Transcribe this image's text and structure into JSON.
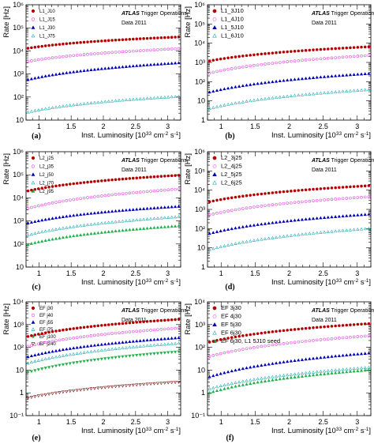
{
  "colors": {
    "red": "#b40000",
    "magenta": "#e040e0",
    "blue": "#0000b4",
    "cyan": "#19a8b0",
    "green": "#22b14c",
    "darkred": "#700000"
  },
  "chart_data": [
    {
      "type": "scatter",
      "panel_label": "(a)",
      "xlabel": "Inst. Luminosity [10",
      "xlabel_exp": "33",
      "xlabel_unit": " cm",
      "xlabel_unit_exp": "-2",
      "xlabel_tail": " s",
      "xlabel_tail_exp": "-1",
      "xlabel_close": "]",
      "ylabel": "Rate [Hz]",
      "experiment": "ATLAS",
      "experiment_suffix": " Trigger Operations",
      "dataset": "Data 2011",
      "xlim": [
        0.8,
        3.2
      ],
      "ylim": [
        10,
        1000000
      ],
      "log_y": true,
      "xticks": [
        "1",
        "1.5",
        "2",
        "2.5",
        "3"
      ],
      "xtick_values": [
        1,
        1.5,
        2,
        2.5,
        3
      ],
      "yticks": [
        "10",
        "10²",
        "10³",
        "10⁴",
        "10⁵",
        "10⁶"
      ],
      "ytick_values": [
        10,
        100,
        1000,
        10000,
        100000,
        1000000
      ],
      "series": [
        {
          "name": "L1_J10",
          "marker": "circle-filled",
          "color": "#b40000",
          "start": 13000,
          "end": 40000
        },
        {
          "name": "L1_J15",
          "marker": "circle-open",
          "color": "#e040e0",
          "start": 3500,
          "end": 12500
        },
        {
          "name": "L1_J30",
          "marker": "triangle-filled",
          "color": "#0000b4",
          "start": 560,
          "end": 3000
        },
        {
          "name": "L1_J75",
          "marker": "triangle-open",
          "color": "#19a8b0",
          "start": 22,
          "end": 105
        }
      ]
    },
    {
      "type": "scatter",
      "panel_label": "(b)",
      "xlabel": "Inst. Luminosity [10",
      "xlabel_exp": "33",
      "xlabel_unit": " cm",
      "xlabel_unit_exp": "-2",
      "xlabel_tail": " s",
      "xlabel_tail_exp": "-1",
      "xlabel_close": "]",
      "ylabel": "Rate [Hz]",
      "experiment": "ATLAS",
      "experiment_suffix": " Trigger Operations",
      "dataset": "Data 2011",
      "xlim": [
        0.8,
        3.2
      ],
      "ylim": [
        1,
        1000000
      ],
      "log_y": true,
      "xticks": [
        "1",
        "1.5",
        "2",
        "2.5",
        "3"
      ],
      "xtick_values": [
        1,
        1.5,
        2,
        2.5,
        3
      ],
      "yticks": [
        "1",
        "10",
        "10²",
        "10³",
        "10⁴",
        "10⁵",
        "10⁶"
      ],
      "ytick_values": [
        1,
        10,
        100,
        1000,
        10000,
        100000,
        1000000
      ],
      "series": [
        {
          "name": "L1_3J10",
          "marker": "circle-filled",
          "color": "#b40000",
          "start": 1200,
          "end": 6500
        },
        {
          "name": "L1_4J10",
          "marker": "circle-open",
          "color": "#e040e0",
          "start": 280,
          "end": 2300
        },
        {
          "name": "L1_5J10",
          "marker": "triangle-filled",
          "color": "#0000b4",
          "start": 28,
          "end": 260
        },
        {
          "name": "L1_6J10",
          "marker": "triangle-open",
          "color": "#19a8b0",
          "start": 4,
          "end": 38
        }
      ]
    },
    {
      "type": "scatter",
      "panel_label": "(c)",
      "xlabel": "Inst. Luminosity [10",
      "xlabel_exp": "33",
      "xlabel_unit": " cm",
      "xlabel_unit_exp": "-2",
      "xlabel_tail": " s",
      "xlabel_tail_exp": "-1",
      "xlabel_close": "]",
      "ylabel": "Rate [Hz]",
      "experiment": "ATLAS",
      "experiment_suffix": " Trigger Operations",
      "dataset": "Data 2011",
      "xlim": [
        0.8,
        3.2
      ],
      "ylim": [
        10,
        1000000
      ],
      "log_y": true,
      "xticks": [
        "1",
        "1.5",
        "2",
        "2.5",
        "3"
      ],
      "xtick_values": [
        1,
        1.5,
        2,
        2.5,
        3
      ],
      "yticks": [
        "10",
        "10²",
        "10³",
        "10⁴",
        "10⁵",
        "10⁶"
      ],
      "ytick_values": [
        10,
        100,
        1000,
        10000,
        100000,
        1000000
      ],
      "series": [
        {
          "name": "L2_j25",
          "marker": "circle-filled",
          "color": "#b40000",
          "start": 20000,
          "end": 95000
        },
        {
          "name": "L2_j35",
          "marker": "circle-open",
          "color": "#e040e0",
          "start": 3500,
          "end": 24000
        },
        {
          "name": "L2_j50",
          "marker": "triangle-filled",
          "color": "#0000b4",
          "start": 800,
          "end": 4200
        },
        {
          "name": "L2_j70",
          "marker": "triangle-open",
          "color": "#19a8b0",
          "start": 240,
          "end": 1500
        },
        {
          "name": "L2_j95",
          "marker": "triangle-filled",
          "color": "#22b14c",
          "start": 95,
          "end": 600
        }
      ]
    },
    {
      "type": "scatter",
      "panel_label": "(d)",
      "xlabel": "Inst. Luminosity [10",
      "xlabel_exp": "33",
      "xlabel_unit": " cm",
      "xlabel_unit_exp": "-2",
      "xlabel_tail": " s",
      "xlabel_tail_exp": "-1",
      "xlabel_close": "]",
      "ylabel": "Rate [Hz]",
      "experiment": "ATLAS",
      "experiment_suffix": " Trigger Operations",
      "dataset": "Data 2011",
      "xlim": [
        0.8,
        3.2
      ],
      "ylim": [
        1,
        1000000
      ],
      "log_y": true,
      "xticks": [
        "1",
        "1.5",
        "2",
        "2.5",
        "3"
      ],
      "xtick_values": [
        1,
        1.5,
        2,
        2.5,
        3
      ],
      "yticks": [
        "1",
        "10",
        "10²",
        "10³",
        "10⁴",
        "10⁵",
        "10⁶"
      ],
      "ytick_values": [
        1,
        10,
        100,
        1000,
        10000,
        100000,
        1000000
      ],
      "series": [
        {
          "name": "L2_3j25",
          "marker": "circle-filled",
          "color": "#b40000",
          "start": 2500,
          "end": 17000
        },
        {
          "name": "L2_4j25",
          "marker": "circle-open",
          "color": "#e040e0",
          "start": 520,
          "end": 4500
        },
        {
          "name": "L2_5j25",
          "marker": "triangle-filled",
          "color": "#0000b4",
          "start": 55,
          "end": 550
        },
        {
          "name": "L2_6j25",
          "marker": "triangle-open",
          "color": "#19a8b0",
          "start": 8,
          "end": 100
        }
      ]
    },
    {
      "type": "scatter",
      "panel_label": "(e)",
      "xlabel": "Inst. Luminosity [10",
      "xlabel_exp": "33",
      "xlabel_unit": " cm",
      "xlabel_unit_exp": "-2",
      "xlabel_tail": " s",
      "xlabel_tail_exp": "-1",
      "xlabel_close": "]",
      "ylabel": "Rate [Hz]",
      "experiment": "ATLAS",
      "experiment_suffix": " Trigger Operations",
      "dataset": "Data 2011",
      "xlim": [
        0.8,
        3.2
      ],
      "ylim": [
        0.1,
        10000
      ],
      "log_y": true,
      "xticks": [
        "1",
        "1.5",
        "2",
        "2.5",
        "3"
      ],
      "xtick_values": [
        1,
        1.5,
        2,
        2.5,
        3
      ],
      "yticks": [
        "10⁻¹",
        "1",
        "10",
        "10²",
        "10³",
        "10⁴"
      ],
      "ytick_values": [
        0.1,
        1,
        10,
        100,
        1000,
        10000
      ],
      "series": [
        {
          "name": "EF j30",
          "marker": "circle-filled",
          "color": "#b40000",
          "start": 300,
          "end": 1700
        },
        {
          "name": "EF j40",
          "marker": "circle-open",
          "color": "#e040e0",
          "start": 110,
          "end": 700
        },
        {
          "name": "EF j55",
          "marker": "triangle-filled",
          "color": "#0000b4",
          "start": 38,
          "end": 260
        },
        {
          "name": "EF j75",
          "marker": "triangle-open",
          "color": "#19a8b0",
          "start": 20,
          "end": 150
        },
        {
          "name": "EF j100",
          "marker": "triangle-down-filled",
          "color": "#22b14c",
          "start": 8,
          "end": 65
        },
        {
          "name": "EF j240",
          "marker": "triangle-down-open",
          "color": "#700000",
          "start": 0.6,
          "end": 3
        }
      ]
    },
    {
      "type": "scatter",
      "panel_label": "(f)",
      "xlabel": "Inst. Luminosity [10",
      "xlabel_exp": "33",
      "xlabel_unit": " cm",
      "xlabel_unit_exp": "-2",
      "xlabel_tail": " s",
      "xlabel_tail_exp": "-1",
      "xlabel_close": "]",
      "ylabel": "Rate [Hz]",
      "experiment": "ATLAS",
      "experiment_suffix": " Trigger Operations",
      "dataset": "Data 2011",
      "xlim": [
        0.8,
        3.2
      ],
      "ylim": [
        0.1,
        10000
      ],
      "log_y": true,
      "xticks": [
        "1",
        "1.5",
        "2",
        "2.5",
        "3"
      ],
      "xtick_values": [
        1,
        1.5,
        2,
        2.5,
        3
      ],
      "yticks": [
        "10⁻¹",
        "1",
        "10",
        "10²",
        "10³",
        "10⁴"
      ],
      "ytick_values": [
        0.1,
        1,
        10,
        100,
        1000,
        10000
      ],
      "series": [
        {
          "name": "EF 3j30",
          "marker": "circle-filled",
          "color": "#b40000",
          "start": 170,
          "end": 1100
        },
        {
          "name": "EF 4j30",
          "marker": "circle-open",
          "color": "#e040e0",
          "start": 40,
          "end": 320
        },
        {
          "name": "EF 5j30",
          "marker": "triangle-filled",
          "color": "#0000b4",
          "start": 5,
          "end": 55
        },
        {
          "name": "EF 6j30",
          "marker": "triangle-open",
          "color": "#19a8b0",
          "start": 1.5,
          "end": 13
        },
        {
          "name": "EF 6j30, L1 5J10 seed",
          "marker": "triangle-filled",
          "color": "#22b14c",
          "start": 1.0,
          "end": 10
        }
      ]
    }
  ]
}
